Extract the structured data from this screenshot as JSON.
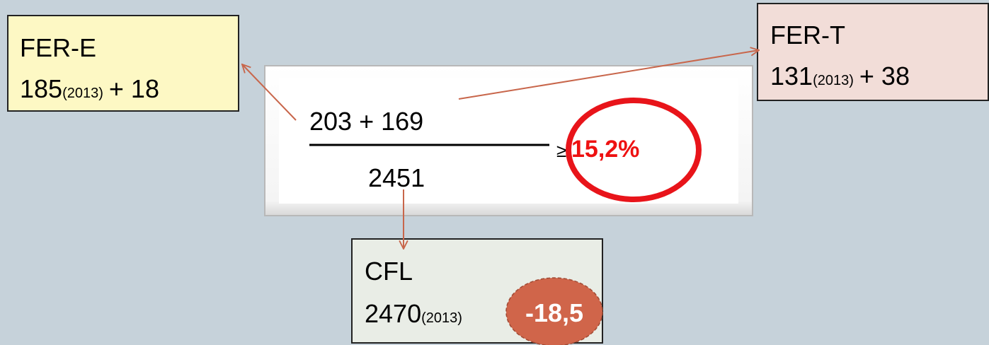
{
  "fer_e": {
    "title": "FER-E",
    "base": "185",
    "year": "(2013)",
    "delta": "+ 18"
  },
  "fer_t": {
    "title": "FER-T",
    "base": "131",
    "year": "(2013)",
    "delta": "+ 38"
  },
  "formula": {
    "numerator": "203 + 169",
    "denominator": "2451",
    "relation": "≥",
    "result": "15,2%"
  },
  "cfl": {
    "title": "CFL",
    "base": "2470",
    "year": "(2013)",
    "delta": "-18,5"
  }
}
